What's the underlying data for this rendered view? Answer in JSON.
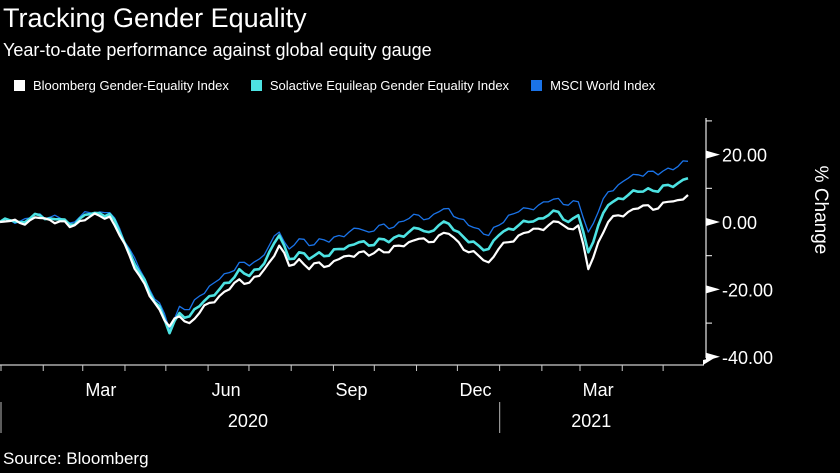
{
  "chart_data": {
    "type": "line",
    "title": "Tracking Gender Equality",
    "subtitle": "Year-to-date performance against global equity gauge",
    "source": "Source: Bloomberg",
    "xlabel": "",
    "ylabel": "% Change",
    "ylim": [
      -40,
      30
    ],
    "y_ticks": [
      {
        "value": 20,
        "label": "20.00"
      },
      {
        "value": 0,
        "label": "0.00"
      },
      {
        "value": -20,
        "label": "-20.00"
      },
      {
        "value": -40,
        "label": "-40.00"
      }
    ],
    "y_minor_ticks": [
      30,
      10,
      -10,
      -30
    ],
    "x_range": [
      "2020-01-01",
      "2021-05-20"
    ],
    "x_month_labels": [
      {
        "date": "2020-03-15",
        "label": "Mar"
      },
      {
        "date": "2020-06-15",
        "label": "Jun"
      },
      {
        "date": "2020-09-15",
        "label": "Sep"
      },
      {
        "date": "2020-12-15",
        "label": "Dec"
      },
      {
        "date": "2021-03-15",
        "label": "Mar"
      }
    ],
    "x_year_labels": [
      {
        "label": "2020",
        "center": "2020-07-01"
      },
      {
        "label": "2021",
        "center": "2021-03-10"
      }
    ],
    "year_boundaries": [
      "2020-01-01",
      "2021-01-01"
    ],
    "x_month_ticks": [
      "2020-01-01",
      "2020-02-01",
      "2020-03-01",
      "2020-04-01",
      "2020-05-01",
      "2020-06-01",
      "2020-07-01",
      "2020-08-01",
      "2020-09-01",
      "2020-10-01",
      "2020-11-01",
      "2020-12-01",
      "2021-01-01",
      "2021-02-01",
      "2021-03-01",
      "2021-04-01",
      "2021-05-01"
    ],
    "grid": false,
    "legend_position": "top-left",
    "sample_dates_note": "values sampled at evenly spaced dates from 2020-01-01 to 2021-05-20",
    "series": [
      {
        "name": "Bloomberg Gender-Equality Index",
        "color": "#ffffff",
        "values": [
          0.0,
          0.3,
          -0.3,
          0.5,
          1.2,
          0.6,
          0.2,
          -1.5,
          0.3,
          1.5,
          1.8,
          1.6,
          -4,
          -10,
          -16,
          -22,
          -26,
          -31,
          -28,
          -30,
          -27,
          -24,
          -22,
          -20,
          -17,
          -18,
          -16,
          -12,
          -7,
          -13,
          -11,
          -14,
          -12,
          -13,
          -11,
          -10,
          -9,
          -10,
          -8,
          -9,
          -7,
          -6,
          -5,
          -6,
          -4,
          -3.5,
          -6,
          -9,
          -10,
          -12,
          -8,
          -6,
          -4,
          -3,
          -2,
          -1,
          0,
          -2,
          -1,
          -14,
          -6,
          0,
          2,
          3,
          4,
          5,
          4,
          6,
          6.5,
          8
        ]
      },
      {
        "name": "Solactive Equileap Gender Equality Index",
        "color": "#4de3e3",
        "values": [
          0.0,
          0.5,
          0.0,
          1.0,
          2.0,
          1.0,
          0.8,
          -0.8,
          1.0,
          2.3,
          2.6,
          2.4,
          -3,
          -9,
          -15,
          -21,
          -25,
          -33,
          -27,
          -28,
          -25,
          -22,
          -20,
          -18,
          -14,
          -16,
          -14,
          -9,
          -4,
          -11,
          -9,
          -11,
          -9,
          -10,
          -8,
          -7,
          -6,
          -7,
          -5,
          -6,
          -4,
          -3,
          -2,
          -3,
          -1,
          -0.5,
          -3,
          -6,
          -7,
          -8,
          -4,
          -2,
          -1,
          0,
          1,
          2,
          3,
          0,
          2,
          -9,
          -1,
          5,
          7,
          8,
          9,
          10,
          9,
          11,
          11.5,
          13
        ]
      },
      {
        "name": "MSCI World Index",
        "color": "#1a73e8",
        "values": [
          0.0,
          0.6,
          0.2,
          1.2,
          2.4,
          1.4,
          1.2,
          -0.3,
          1.5,
          2.8,
          3.0,
          2.8,
          -2,
          -8,
          -14,
          -20,
          -24,
          -32,
          -25,
          -26,
          -22,
          -19,
          -17,
          -15,
          -12,
          -13,
          -11,
          -7,
          -3,
          -8,
          -5,
          -7,
          -5,
          -6,
          -4,
          -3,
          -2,
          -3,
          -1,
          -2,
          0,
          1,
          2,
          1,
          3,
          4,
          1,
          -1,
          -2,
          -4,
          -1,
          2,
          3,
          4,
          5,
          6,
          7,
          5,
          6,
          -3,
          3,
          9,
          11,
          13,
          14,
          15,
          14,
          16,
          16.5,
          18
        ]
      }
    ]
  }
}
